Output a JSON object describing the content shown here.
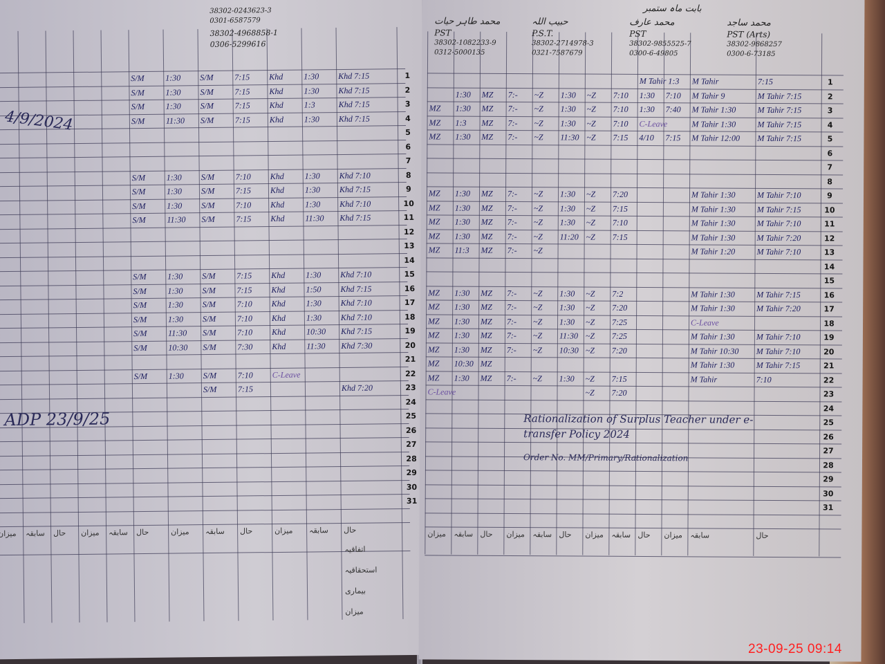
{
  "timestamp": "23-09-25 09:14",
  "days": [
    "1",
    "2",
    "3",
    "4",
    "5",
    "6",
    "7",
    "8",
    "9",
    "10",
    "11",
    "12",
    "13",
    "14",
    "15",
    "16",
    "17",
    "18",
    "19",
    "20",
    "21",
    "22",
    "23",
    "24",
    "25",
    "26",
    "27",
    "28",
    "29",
    "30",
    "31"
  ],
  "footer_labels": [
    "میزان",
    "سابقہ",
    "حال"
  ],
  "side_labels": [
    "اتفاقیہ",
    "استحقاقیہ",
    "بیماری",
    "میزان"
  ],
  "right_page": {
    "month_label": "بابت ماہ ستمبر",
    "teachers": [
      {
        "name": "محمد ساجد",
        "designation": "PST (Arts)",
        "cnic": "38302-9868257",
        "phone": "0300-6-73185"
      },
      {
        "name": "محمد عارف",
        "designation": "PST",
        "cnic": "38302-9855525-7",
        "phone": "0300-6-49805"
      },
      {
        "name": "حبیب اللہ",
        "designation": "P.S.T.",
        "cnic": "38302-2714978-3",
        "phone": "0321-7587679"
      },
      {
        "name": "محمد طاہر حیات",
        "designation": "PST",
        "cnic": "38302-1082233-9",
        "phone": "0312-5000135"
      }
    ],
    "rows": [
      {
        "day": 1,
        "cells": [
          "",
          "",
          "",
          "",
          "",
          "",
          "",
          "",
          "M Tahir 1:3",
          "",
          "M Tahir",
          "7:15"
        ]
      },
      {
        "day": 2,
        "cells": [
          "",
          "1:30",
          "MZ",
          "7:-",
          "~Z",
          "1:30",
          "~Z",
          "7:10",
          "1:30",
          "7:10",
          "M Tahir 9",
          "M Tahir 7:15"
        ]
      },
      {
        "day": 3,
        "cells": [
          "MZ",
          "1:30",
          "MZ",
          "7:-",
          "~Z",
          "1:30",
          "~Z",
          "7:10",
          "1:30",
          "7:40",
          "M Tahir 1:30",
          "M Tahir 7:15"
        ]
      },
      {
        "day": 4,
        "cells": [
          "MZ",
          "1:3",
          "MZ",
          "7:-",
          "~Z",
          "1:30",
          "~Z",
          "7:10",
          "C-Leave",
          "",
          "M Tahir 1:30",
          "M Tahir 7:15"
        ]
      },
      {
        "day": 5,
        "cells": [
          "MZ",
          "1:30",
          "MZ",
          "7:-",
          "~Z",
          "11:30",
          "~Z",
          "7:15",
          "4/10",
          "7:15",
          "M Tahir 12:00",
          "M Tahir 7:15"
        ]
      },
      {
        "day": 9,
        "cells": [
          "MZ",
          "1:30",
          "MZ",
          "7:-",
          "~Z",
          "1:30",
          "~Z",
          "7:20",
          "",
          "",
          "M Tahir 1:30",
          "M Tahir 7:10"
        ]
      },
      {
        "day": 10,
        "cells": [
          "MZ",
          "1:30",
          "MZ",
          "7:-",
          "~Z",
          "1:30",
          "~Z",
          "7:15",
          "",
          "",
          "M Tahir 1:30",
          "M Tahir 7:15"
        ]
      },
      {
        "day": 11,
        "cells": [
          "MZ",
          "1:30",
          "MZ",
          "7:-",
          "~Z",
          "1:30",
          "~Z",
          "7:10",
          "",
          "",
          "M Tahir 1:30",
          "M Tahir 7:10"
        ]
      },
      {
        "day": 12,
        "cells": [
          "MZ",
          "1:30",
          "MZ",
          "7:-",
          "~Z",
          "11:20",
          "~Z",
          "7:15",
          "",
          "",
          "M Tahir 1:30",
          "M Tahir 7:20"
        ]
      },
      {
        "day": 13,
        "cells": [
          "MZ",
          "11:3",
          "MZ",
          "7:-",
          "~Z",
          "",
          "",
          "",
          "",
          "",
          "M Tahir 1:20",
          "M Tahir 7:10"
        ]
      },
      {
        "day": 16,
        "cells": [
          "MZ",
          "1:30",
          "MZ",
          "7:-",
          "~Z",
          "1:30",
          "~Z",
          "7:2",
          "",
          "",
          "M Tahir 1:30",
          "M Tahir 7:15"
        ]
      },
      {
        "day": 17,
        "cells": [
          "MZ",
          "1:30",
          "MZ",
          "7:-",
          "~Z",
          "1:30",
          "~Z",
          "7:20",
          "",
          "",
          "M Tahir 1:30",
          "M Tahir 7:20"
        ]
      },
      {
        "day": 18,
        "cells": [
          "MZ",
          "1:30",
          "MZ",
          "7:-",
          "~Z",
          "1:30",
          "~Z",
          "7:25",
          "",
          "",
          "C-Leave",
          ""
        ]
      },
      {
        "day": 19,
        "cells": [
          "MZ",
          "1:30",
          "MZ",
          "7:-",
          "~Z",
          "11:30",
          "~Z",
          "7:25",
          "",
          "",
          "M Tahir 1:30",
          "M Tahir 7:10"
        ]
      },
      {
        "day": 20,
        "cells": [
          "MZ",
          "1:30",
          "MZ",
          "7:-",
          "~Z",
          "10:30",
          "~Z",
          "7:20",
          "",
          "",
          "M Tahir 10:30",
          "M Tahir 7:10"
        ]
      },
      {
        "day": 21,
        "cells": [
          "MZ",
          "10:30",
          "MZ",
          "",
          "",
          "",
          "",
          "",
          "",
          "",
          "M Tahir 1:30",
          "M Tahir 7:15"
        ]
      },
      {
        "day": 22,
        "cells": [
          "MZ",
          "1:30",
          "MZ",
          "7:-",
          "~Z",
          "1:30",
          "~Z",
          "7:15",
          "",
          "",
          "M Tahir",
          "7:10"
        ]
      },
      {
        "day": 23,
        "cells": [
          "C-Leave",
          "",
          "",
          "",
          "",
          "",
          "~Z",
          "7:20",
          "",
          "",
          "",
          ""
        ]
      }
    ],
    "annotation": "Rationalization of Surplus Teacher under e-transfer Policy 2024",
    "annotation_2": "Order No. MM/Primary/Rationalization"
  },
  "left_page": {
    "teachers": [
      {
        "cnic": "38302-4968858-1",
        "phone": "0306-5299616"
      },
      {
        "cnic": "38302-0243623-3",
        "phone": "0301-6587579"
      }
    ],
    "rows": [
      {
        "day": 1,
        "cells": [
          "S/M",
          "1:30",
          "S/M",
          "7:15",
          "Khd",
          "1:30",
          "Khd 7:15"
        ]
      },
      {
        "day": 2,
        "cells": [
          "S/M",
          "1:30",
          "S/M",
          "7:15",
          "Khd",
          "1:30",
          "Khd 7:15"
        ]
      },
      {
        "day": 3,
        "cells": [
          "S/M",
          "1:30",
          "S/M",
          "7:15",
          "Khd",
          "1:3",
          "Khd 7:15"
        ]
      },
      {
        "day": 4,
        "cells": [
          "S/M",
          "11:30",
          "S/M",
          "7:15",
          "Khd",
          "1:30",
          "Khd 7:15"
        ]
      },
      {
        "day": 8,
        "cells": [
          "S/M",
          "1:30",
          "S/M",
          "7:10",
          "Khd",
          "1:30",
          "Khd 7:10"
        ]
      },
      {
        "day": 9,
        "cells": [
          "S/M",
          "1:30",
          "S/M",
          "7:15",
          "Khd",
          "1:30",
          "Khd 7:15"
        ]
      },
      {
        "day": 10,
        "cells": [
          "S/M",
          "1:30",
          "S/M",
          "7:10",
          "Khd",
          "1:30",
          "Khd 7:10"
        ]
      },
      {
        "day": 11,
        "cells": [
          "S/M",
          "11:30",
          "S/M",
          "7:15",
          "Khd",
          "11:30",
          "Khd 7:15"
        ]
      },
      {
        "day": 15,
        "cells": [
          "S/M",
          "1:30",
          "S/M",
          "7:15",
          "Khd",
          "1:30",
          "Khd 7:10"
        ]
      },
      {
        "day": 16,
        "cells": [
          "S/M",
          "1:30",
          "S/M",
          "7:15",
          "Khd",
          "1:50",
          "Khd 7:15"
        ]
      },
      {
        "day": 17,
        "cells": [
          "S/M",
          "1:30",
          "S/M",
          "7:10",
          "Khd",
          "1:30",
          "Khd 7:10"
        ]
      },
      {
        "day": 18,
        "cells": [
          "S/M",
          "1:30",
          "S/M",
          "7:10",
          "Khd",
          "1:30",
          "Khd 7:10"
        ]
      },
      {
        "day": 19,
        "cells": [
          "S/M",
          "11:30",
          "S/M",
          "7:10",
          "Khd",
          "10:30",
          "Khd 7:15"
        ]
      },
      {
        "day": 20,
        "cells": [
          "S/M",
          "10:30",
          "S/M",
          "7:30",
          "Khd",
          "11:30",
          "Khd 7:30"
        ]
      },
      {
        "day": 22,
        "cells": [
          "S/M",
          "1:30",
          "S/M",
          "7:10",
          "C-Leave",
          "",
          ""
        ]
      },
      {
        "day": 23,
        "cells": [
          "",
          "",
          "S/M",
          "7:15",
          "",
          "",
          "Khd 7:20"
        ]
      }
    ],
    "sig_date_1": "4/9/2024",
    "sig_date_2": "ADP 23/9/25"
  }
}
